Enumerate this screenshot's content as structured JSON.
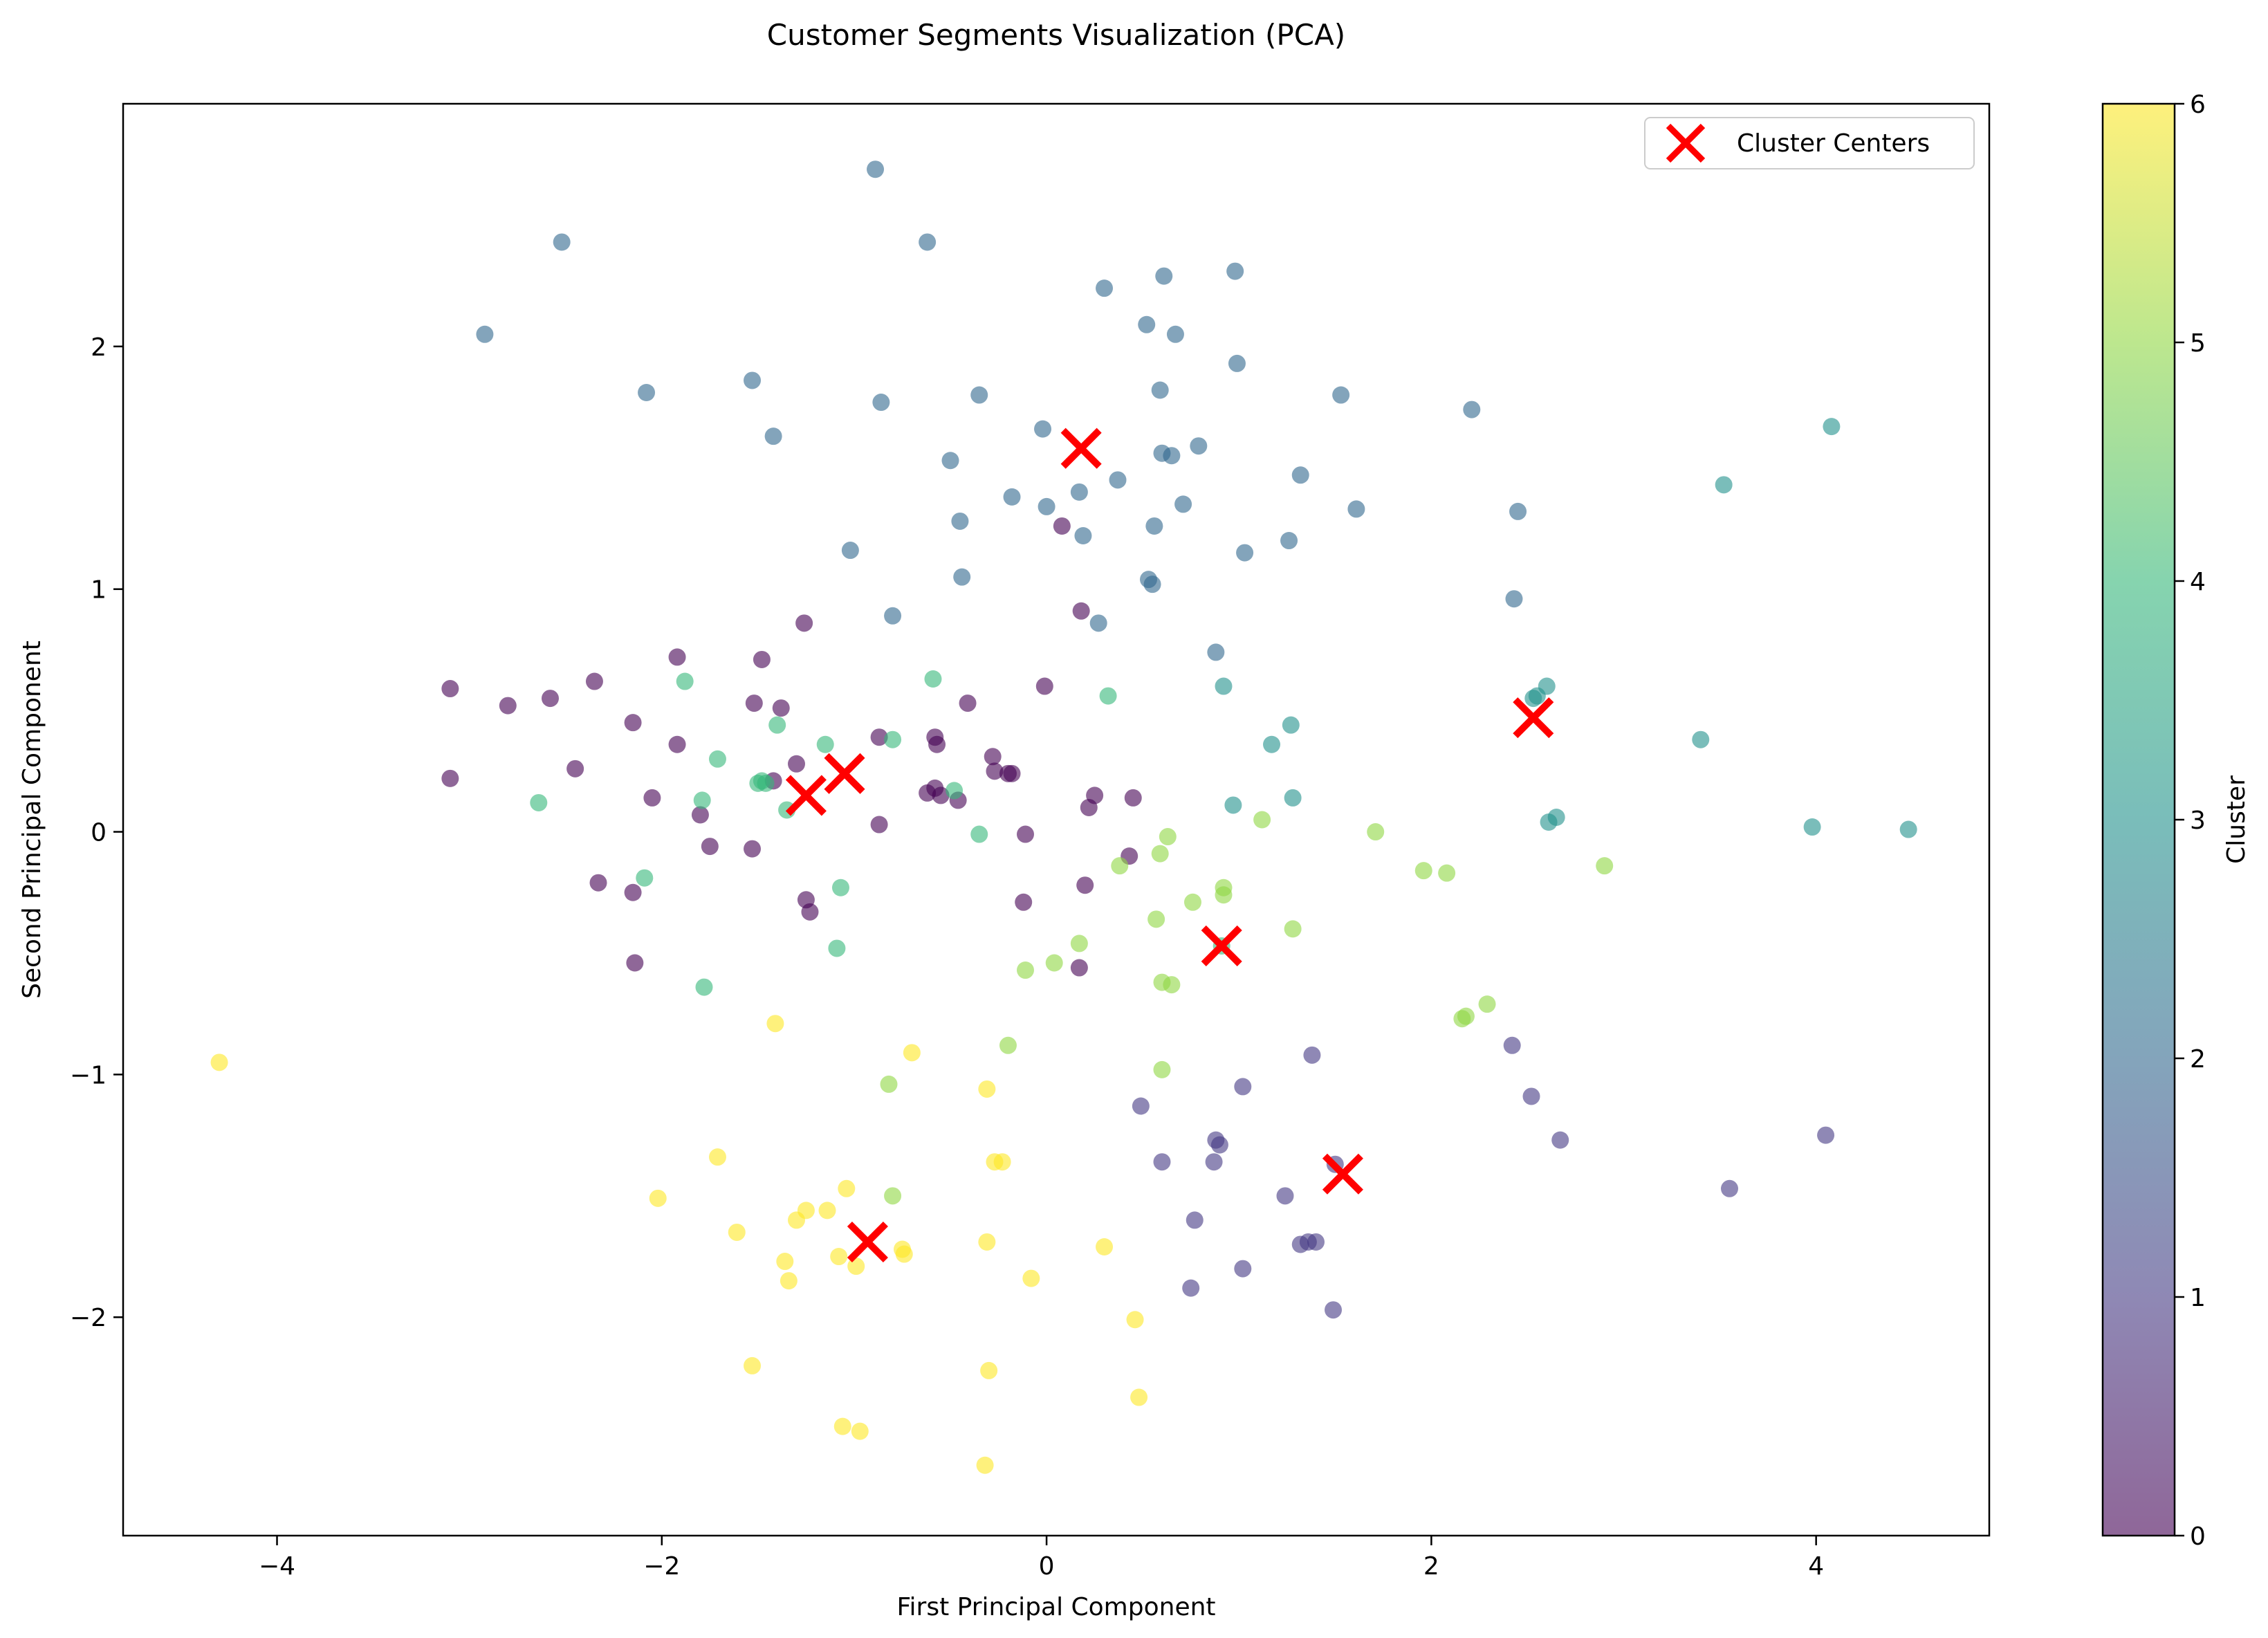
{
  "chart_data": {
    "type": "scatter",
    "title": "Customer Segments Visualization (PCA)",
    "xlabel": "First Principal Component",
    "ylabel": "Second Principal Component",
    "xlim": [
      -4.8,
      4.9
    ],
    "ylim": [
      -2.9,
      3.0
    ],
    "xticks": [
      -4,
      -2,
      0,
      2,
      4
    ],
    "yticks": [
      -2,
      -1,
      0,
      1,
      2
    ],
    "xtick_labels": [
      "−4",
      "−2",
      "0",
      "2",
      "4"
    ],
    "ytick_labels": [
      "−2",
      "−1",
      "0",
      "1",
      "2"
    ],
    "grid": false,
    "colormap": "viridis",
    "point_alpha": 0.6,
    "colorbar": {
      "label": "Cluster",
      "min": 0,
      "max": 6,
      "ticks": [
        0,
        1,
        2,
        3,
        4,
        5,
        6
      ],
      "tick_labels": [
        "0",
        "1",
        "2",
        "3",
        "4",
        "5",
        "6"
      ]
    },
    "legend": {
      "placement": "top-right",
      "entries": [
        "Cluster Centers"
      ]
    },
    "centers": {
      "name": "Cluster Centers",
      "marker": "x",
      "color": "#ff0000",
      "points": [
        [
          0.18,
          1.58
        ],
        [
          -1.05,
          0.24
        ],
        [
          -1.25,
          0.15
        ],
        [
          2.53,
          0.47
        ],
        [
          0.91,
          -0.47
        ],
        [
          1.54,
          -1.41
        ],
        [
          -0.93,
          -1.69
        ]
      ]
    },
    "series": [
      {
        "cluster": 0,
        "points": [
          [
            -3.1,
            0.59
          ],
          [
            -3.1,
            0.22
          ],
          [
            -2.8,
            0.52
          ],
          [
            -2.58,
            0.55
          ],
          [
            -2.35,
            0.62
          ],
          [
            -2.45,
            0.26
          ],
          [
            -2.15,
            0.45
          ],
          [
            -2.05,
            0.14
          ],
          [
            -1.92,
            0.72
          ],
          [
            -1.92,
            0.36
          ],
          [
            -1.8,
            0.07
          ],
          [
            -1.75,
            -0.06
          ],
          [
            -1.52,
            0.53
          ],
          [
            -1.48,
            0.71
          ],
          [
            -1.42,
            0.21
          ],
          [
            -1.38,
            0.51
          ],
          [
            -1.3,
            0.28
          ],
          [
            -1.26,
            0.86
          ],
          [
            -1.25,
            -0.28
          ],
          [
            -1.23,
            -0.33
          ],
          [
            -0.87,
            0.39
          ],
          [
            -0.87,
            0.03
          ],
          [
            -0.62,
            0.16
          ],
          [
            -0.58,
            0.39
          ],
          [
            -0.57,
            0.36
          ],
          [
            -0.58,
            0.18
          ],
          [
            -0.55,
            0.15
          ],
          [
            -0.46,
            0.13
          ],
          [
            -0.41,
            0.53
          ],
          [
            -0.28,
            0.31
          ],
          [
            -0.27,
            0.25
          ],
          [
            -0.2,
            0.24
          ],
          [
            -0.18,
            0.24
          ],
          [
            -0.12,
            -0.29
          ],
          [
            -0.11,
            -0.01
          ],
          [
            -0.01,
            0.6
          ],
          [
            0.08,
            1.26
          ],
          [
            0.18,
            0.91
          ],
          [
            0.17,
            -0.56
          ],
          [
            0.2,
            -0.22
          ],
          [
            0.22,
            0.1
          ],
          [
            0.25,
            0.15
          ],
          [
            0.43,
            -0.1
          ],
          [
            0.45,
            0.14
          ],
          [
            -2.15,
            -0.25
          ],
          [
            -2.14,
            -0.54
          ],
          [
            -2.33,
            -0.21
          ],
          [
            -1.53,
            -0.07
          ]
        ]
      },
      {
        "cluster": 1,
        "points": [
          [
            0.49,
            -1.13
          ],
          [
            0.6,
            -1.36
          ],
          [
            0.75,
            -1.88
          ],
          [
            0.77,
            -1.6
          ],
          [
            0.87,
            -1.36
          ],
          [
            0.88,
            -1.27
          ],
          [
            0.9,
            -1.29
          ],
          [
            1.02,
            -1.05
          ],
          [
            1.02,
            -1.8
          ],
          [
            1.24,
            -1.5
          ],
          [
            1.32,
            -1.7
          ],
          [
            1.36,
            -1.69
          ],
          [
            1.4,
            -1.69
          ],
          [
            1.38,
            -0.92
          ],
          [
            1.49,
            -1.97
          ],
          [
            1.5,
            -1.37
          ],
          [
            2.42,
            -0.88
          ],
          [
            2.52,
            -1.09
          ],
          [
            2.67,
            -1.27
          ],
          [
            3.55,
            -1.47
          ],
          [
            4.05,
            -1.25
          ]
        ]
      },
      {
        "cluster": 2,
        "points": [
          [
            -2.92,
            2.05
          ],
          [
            -2.52,
            2.43
          ],
          [
            -2.08,
            1.81
          ],
          [
            -1.53,
            1.86
          ],
          [
            -1.42,
            1.63
          ],
          [
            -0.89,
            2.73
          ],
          [
            -0.86,
            1.77
          ],
          [
            -0.8,
            0.89
          ],
          [
            -0.62,
            2.43
          ],
          [
            -0.5,
            1.53
          ],
          [
            -0.45,
            1.28
          ],
          [
            -0.44,
            1.05
          ],
          [
            -0.35,
            1.8
          ],
          [
            -0.18,
            1.38
          ],
          [
            -0.02,
            1.66
          ],
          [
            0.0,
            1.34
          ],
          [
            0.17,
            1.4
          ],
          [
            0.19,
            1.22
          ],
          [
            0.27,
            0.86
          ],
          [
            0.3,
            2.24
          ],
          [
            0.37,
            1.45
          ],
          [
            0.52,
            2.09
          ],
          [
            0.53,
            1.04
          ],
          [
            0.55,
            1.02
          ],
          [
            0.56,
            1.26
          ],
          [
            0.59,
            1.82
          ],
          [
            0.6,
            1.56
          ],
          [
            0.61,
            2.29
          ],
          [
            0.65,
            1.55
          ],
          [
            0.67,
            2.05
          ],
          [
            0.71,
            1.35
          ],
          [
            0.79,
            1.59
          ],
          [
            0.88,
            0.74
          ],
          [
            0.98,
            2.31
          ],
          [
            0.99,
            1.93
          ],
          [
            1.03,
            1.15
          ],
          [
            1.26,
            1.2
          ],
          [
            1.32,
            1.47
          ],
          [
            1.53,
            1.8
          ],
          [
            1.61,
            1.33
          ],
          [
            2.21,
            1.74
          ],
          [
            2.45,
            1.32
          ],
          [
            2.43,
            0.96
          ],
          [
            -1.02,
            1.16
          ]
        ]
      },
      {
        "cluster": 3,
        "points": [
          [
            0.92,
            0.6
          ],
          [
            0.97,
            0.11
          ],
          [
            1.17,
            0.36
          ],
          [
            1.27,
            0.44
          ],
          [
            1.28,
            0.14
          ],
          [
            2.53,
            0.55
          ],
          [
            2.55,
            0.56
          ],
          [
            2.6,
            0.6
          ],
          [
            2.61,
            0.04
          ],
          [
            2.65,
            0.06
          ],
          [
            3.4,
            0.38
          ],
          [
            3.52,
            1.43
          ],
          [
            3.98,
            0.02
          ],
          [
            4.08,
            1.67
          ],
          [
            4.48,
            0.01
          ]
        ]
      },
      {
        "cluster": 4,
        "points": [
          [
            -2.64,
            0.12
          ],
          [
            -2.09,
            -0.19
          ],
          [
            -1.88,
            0.62
          ],
          [
            -1.79,
            0.13
          ],
          [
            -1.78,
            -0.64
          ],
          [
            -1.71,
            0.3
          ],
          [
            -1.5,
            0.2
          ],
          [
            -1.48,
            0.21
          ],
          [
            -1.46,
            0.2
          ],
          [
            -1.4,
            0.44
          ],
          [
            -1.35,
            0.09
          ],
          [
            -1.15,
            0.36
          ],
          [
            -1.07,
            -0.23
          ],
          [
            -1.09,
            -0.48
          ],
          [
            -0.8,
            0.38
          ],
          [
            -0.59,
            0.63
          ],
          [
            -0.48,
            0.17
          ],
          [
            -0.35,
            -0.01
          ],
          [
            0.32,
            0.56
          ],
          [
            0.91,
            -0.47
          ]
        ]
      },
      {
        "cluster": 5,
        "points": [
          [
            -0.82,
            -1.04
          ],
          [
            -0.8,
            -1.5
          ],
          [
            -0.2,
            -0.88
          ],
          [
            -0.11,
            -0.57
          ],
          [
            0.04,
            -0.54
          ],
          [
            0.17,
            -0.46
          ],
          [
            0.38,
            -0.14
          ],
          [
            0.57,
            -0.36
          ],
          [
            0.59,
            -0.09
          ],
          [
            0.6,
            -0.62
          ],
          [
            0.6,
            -0.98
          ],
          [
            0.63,
            -0.02
          ],
          [
            0.65,
            -0.63
          ],
          [
            0.76,
            -0.29
          ],
          [
            0.92,
            -0.23
          ],
          [
            0.92,
            -0.26
          ],
          [
            1.12,
            0.05
          ],
          [
            1.28,
            -0.4
          ],
          [
            1.71,
            0.0
          ],
          [
            1.96,
            -0.16
          ],
          [
            2.08,
            -0.17
          ],
          [
            2.16,
            -0.77
          ],
          [
            2.18,
            -0.76
          ],
          [
            2.29,
            -0.71
          ],
          [
            2.9,
            -0.14
          ]
        ]
      },
      {
        "cluster": 6,
        "points": [
          [
            -4.3,
            -0.95
          ],
          [
            -2.02,
            -1.51
          ],
          [
            -1.71,
            -1.34
          ],
          [
            -1.61,
            -1.65
          ],
          [
            -1.53,
            -2.2
          ],
          [
            -1.41,
            -0.79
          ],
          [
            -1.36,
            -1.77
          ],
          [
            -1.34,
            -1.85
          ],
          [
            -1.3,
            -1.6
          ],
          [
            -1.25,
            -1.56
          ],
          [
            -1.14,
            -1.56
          ],
          [
            -1.08,
            -1.75
          ],
          [
            -1.06,
            -2.45
          ],
          [
            -1.04,
            -1.47
          ],
          [
            -0.99,
            -1.79
          ],
          [
            -0.97,
            -2.47
          ],
          [
            -0.75,
            -1.72
          ],
          [
            -0.74,
            -1.74
          ],
          [
            -0.7,
            -0.91
          ],
          [
            -0.31,
            -1.06
          ],
          [
            -0.31,
            -1.69
          ],
          [
            -0.3,
            -2.22
          ],
          [
            -0.32,
            -2.61
          ],
          [
            -0.27,
            -1.36
          ],
          [
            -0.23,
            -1.36
          ],
          [
            -0.08,
            -1.84
          ],
          [
            0.3,
            -1.71
          ],
          [
            0.46,
            -2.01
          ],
          [
            0.48,
            -2.33
          ]
        ]
      }
    ]
  }
}
